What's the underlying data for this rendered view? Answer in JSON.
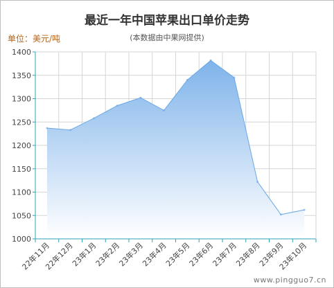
{
  "title": "最近一年中国苹果出口单价走势",
  "subtitle": "(本数据由中果网提供)",
  "unit_label": "单位：美元/吨",
  "watermark": "www.pingguo7.cn",
  "colors": {
    "area_top": "#7fb3ea",
    "area_bottom": "#ffffff",
    "line": "#6aa7e6",
    "axis": "#2ba3b5",
    "grid": "#d6d6d6"
  },
  "chart_data": {
    "type": "area",
    "title": "最近一年中国苹果出口单价走势",
    "subtitle": "(本数据由中果网提供)",
    "ylabel": "单位：美元/吨",
    "categories": [
      "22年11月",
      "22年12月",
      "23年1月",
      "23年2月",
      "23年3月",
      "23年4月",
      "23年5月",
      "23年6月",
      "23年7月",
      "23年8月",
      "23年9月",
      "23年10月"
    ],
    "series": [
      {
        "values": [
          1237,
          1233,
          1258,
          1285,
          1302,
          1275,
          1340,
          1382,
          1345,
          1122,
          1052,
          1062
        ]
      }
    ],
    "ylim": [
      1000,
      1400
    ],
    "yticks": [
      1000,
      1050,
      1100,
      1150,
      1200,
      1250,
      1300,
      1350,
      1400
    ],
    "grid": true,
    "legend": "none"
  }
}
